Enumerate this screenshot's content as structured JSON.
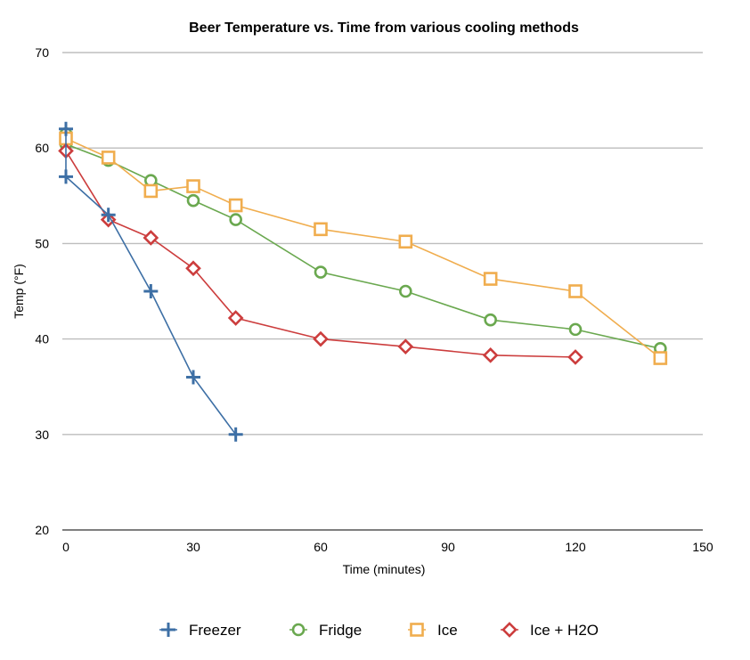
{
  "chart_data": {
    "type": "line",
    "title": "Beer Temperature vs. Time from various cooling methods",
    "xlabel": "Time (minutes)",
    "ylabel": "Temp (°F)",
    "xlim": [
      0,
      150
    ],
    "ylim": [
      20,
      70
    ],
    "xticks": [
      0,
      30,
      60,
      90,
      120,
      150
    ],
    "yticks": [
      20,
      30,
      40,
      50,
      60,
      70
    ],
    "grid": "horizontal",
    "legend_position": "bottom",
    "series": [
      {
        "name": "Freezer",
        "marker": "plus",
        "color": "#3d6fa5",
        "points": [
          [
            0,
            62
          ],
          [
            0,
            57
          ],
          [
            10,
            53
          ],
          [
            20,
            45
          ],
          [
            30,
            36
          ],
          [
            40,
            30
          ]
        ]
      },
      {
        "name": "Fridge",
        "marker": "circle",
        "color": "#6aa84f",
        "points": [
          [
            0,
            61.5
          ],
          [
            0,
            60.4
          ],
          [
            10,
            58.7
          ],
          [
            20,
            56.6
          ],
          [
            30,
            54.5
          ],
          [
            40,
            52.5
          ],
          [
            60,
            47
          ],
          [
            80,
            45
          ],
          [
            100,
            42
          ],
          [
            120,
            41
          ],
          [
            140,
            39
          ]
        ]
      },
      {
        "name": "Ice",
        "marker": "square",
        "color": "#f0ad4e",
        "points": [
          [
            0,
            61
          ],
          [
            10,
            59
          ],
          [
            20,
            55.5
          ],
          [
            30,
            56
          ],
          [
            40,
            54
          ],
          [
            60,
            51.5
          ],
          [
            80,
            50.2
          ],
          [
            100,
            46.3
          ],
          [
            120,
            45
          ],
          [
            140,
            38
          ]
        ]
      },
      {
        "name": "Ice + H2O",
        "marker": "diamond",
        "color": "#cc3d3d",
        "points": [
          [
            0,
            59.7
          ],
          [
            10,
            52.5
          ],
          [
            20,
            50.6
          ],
          [
            30,
            47.4
          ],
          [
            40,
            42.2
          ],
          [
            60,
            40
          ],
          [
            80,
            39.2
          ],
          [
            100,
            38.3
          ],
          [
            120,
            38.1
          ]
        ]
      }
    ]
  }
}
